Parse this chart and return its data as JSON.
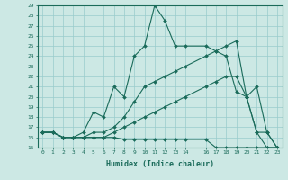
{
  "xlabel": "Humidex (Indice chaleur)",
  "bg_color": "#cce8e4",
  "line_color": "#1a6b5a",
  "grid_color": "#99cccc",
  "xlim": [
    -0.5,
    23.5
  ],
  "ylim": [
    15,
    29
  ],
  "xticks": [
    0,
    1,
    2,
    3,
    4,
    5,
    6,
    7,
    8,
    9,
    10,
    11,
    12,
    13,
    14,
    16,
    17,
    18,
    19,
    20,
    21,
    22,
    23
  ],
  "yticks": [
    15,
    16,
    17,
    18,
    19,
    20,
    21,
    22,
    23,
    24,
    25,
    26,
    27,
    28,
    29
  ],
  "series": [
    {
      "x": [
        0,
        1,
        2,
        3,
        4,
        5,
        6,
        7,
        8,
        9,
        10,
        11,
        12,
        13,
        14,
        16,
        17,
        18,
        19,
        20,
        21,
        22,
        23
      ],
      "y": [
        16.5,
        16.5,
        16.0,
        16.0,
        16.5,
        18.5,
        18.0,
        21.0,
        20.0,
        24.0,
        25.0,
        29.0,
        27.5,
        25.0,
        25.0,
        25.0,
        24.5,
        24.0,
        20.5,
        20.0,
        21.0,
        16.5,
        15.0
      ]
    },
    {
      "x": [
        0,
        1,
        2,
        3,
        4,
        5,
        6,
        7,
        8,
        9,
        10,
        11,
        12,
        13,
        14,
        16,
        17,
        18,
        19,
        20,
        21,
        22,
        23
      ],
      "y": [
        16.5,
        16.5,
        16.0,
        16.0,
        16.0,
        16.5,
        16.5,
        17.0,
        18.0,
        19.5,
        21.0,
        21.5,
        22.0,
        22.5,
        23.0,
        24.0,
        24.5,
        25.0,
        25.5,
        20.0,
        16.5,
        16.5,
        15.0
      ]
    },
    {
      "x": [
        0,
        1,
        2,
        3,
        4,
        5,
        6,
        7,
        8,
        9,
        10,
        11,
        12,
        13,
        14,
        16,
        17,
        18,
        19,
        20,
        21,
        22,
        23
      ],
      "y": [
        16.5,
        16.5,
        16.0,
        16.0,
        16.0,
        16.0,
        16.0,
        16.5,
        17.0,
        17.5,
        18.0,
        18.5,
        19.0,
        19.5,
        20.0,
        21.0,
        21.5,
        22.0,
        22.0,
        20.0,
        16.5,
        15.0,
        15.0
      ]
    },
    {
      "x": [
        0,
        1,
        2,
        3,
        4,
        5,
        6,
        7,
        8,
        9,
        10,
        11,
        12,
        13,
        14,
        16,
        17,
        18,
        19,
        20,
        21,
        22,
        23
      ],
      "y": [
        16.5,
        16.5,
        16.0,
        16.0,
        16.0,
        16.0,
        16.0,
        16.0,
        15.8,
        15.8,
        15.8,
        15.8,
        15.8,
        15.8,
        15.8,
        15.8,
        15.0,
        15.0,
        15.0,
        15.0,
        15.0,
        15.0,
        15.0
      ]
    }
  ]
}
